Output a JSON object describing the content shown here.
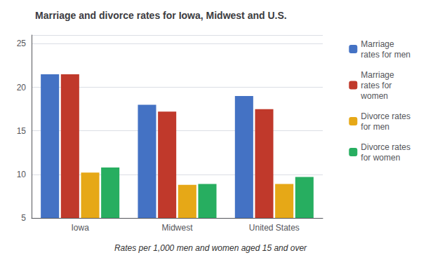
{
  "chart_data": {
    "type": "bar",
    "title": "Marriage and divorce rates for Iowa, Midwest and U.S.",
    "subtitle": "Rates per 1,000 men and women aged 15 and over",
    "categories": [
      "Iowa",
      "Midwest",
      "United States"
    ],
    "series": [
      {
        "name": "Marriage\nrates for men",
        "color": "#4472C4",
        "values": [
          21.5,
          18.0,
          19.0
        ]
      },
      {
        "name": "Marriage\nrates for\nwomen",
        "color": "#C0392B",
        "values": [
          21.5,
          17.2,
          17.5
        ]
      },
      {
        "name": "Divorce rates\nfor men",
        "color": "#E6A817",
        "values": [
          10.2,
          8.8,
          8.9
        ]
      },
      {
        "name": "Divorce rates\nfor women",
        "color": "#27AE60",
        "values": [
          10.8,
          8.9,
          9.7
        ]
      }
    ],
    "ylim": [
      5,
      26
    ],
    "yticks": [
      5,
      10,
      15,
      20,
      25
    ],
    "grid": true,
    "legend": "right"
  }
}
